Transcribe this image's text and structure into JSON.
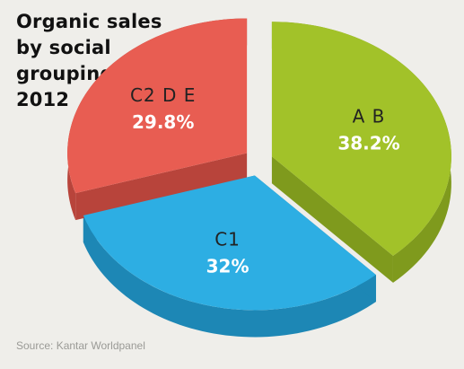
{
  "chart_data": {
    "type": "pie",
    "title": "Organic sales by social grouping 2012",
    "title_lines": [
      "Organic sales",
      "by social",
      "grouping",
      "2012"
    ],
    "style": "3d-exploded",
    "start_angle_deg": 0,
    "slices": [
      {
        "label": "A B",
        "value": 38.2,
        "value_label": "38.2%",
        "color": "#a2c229",
        "side_color": "#7f9a1d"
      },
      {
        "label": "C1",
        "value": 32,
        "value_label": "32%",
        "color": "#2daee3",
        "side_color": "#1d87b5"
      },
      {
        "label": "C2 D E",
        "value": 29.8,
        "value_label": "29.8%",
        "color": "#e85d52",
        "side_color": "#b8443b"
      }
    ]
  },
  "source": "Source: Kantar Worldpanel",
  "colors": {
    "background": "#efeeea",
    "label_text": "#ffffff",
    "slice_name_text": "#222222"
  }
}
